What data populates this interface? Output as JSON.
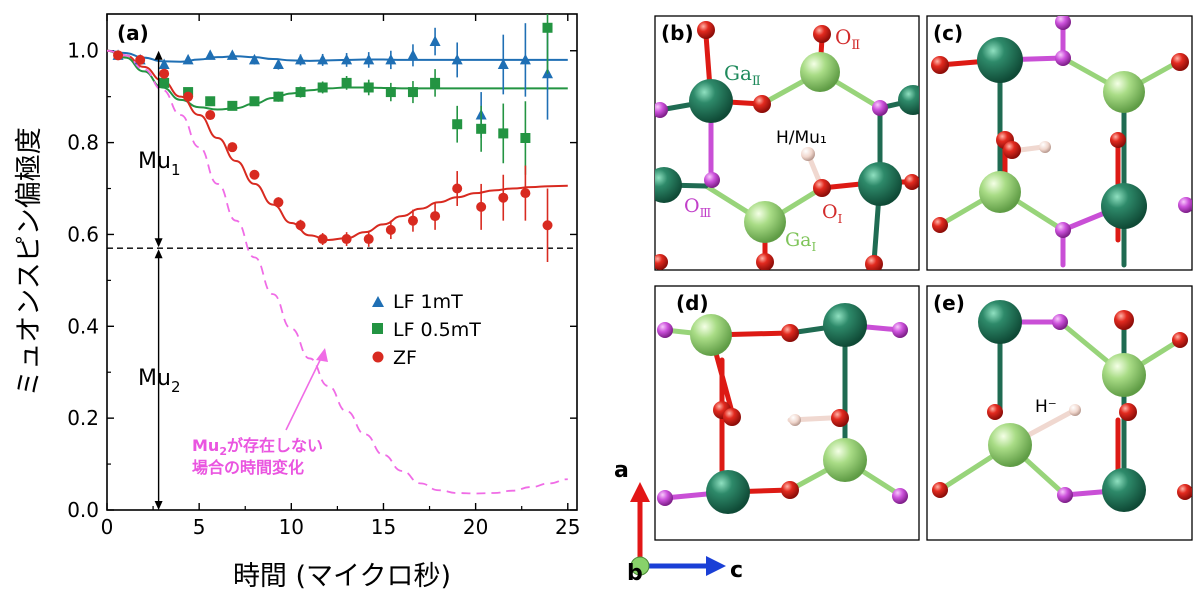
{
  "chart_data": {
    "type": "scatter",
    "panel_label": "(a)",
    "xlabel": "時間 (マイクロ秒)",
    "ylabel": "ミュオンスピン偏極度",
    "xlim": [
      0,
      25.5
    ],
    "ylim": [
      0,
      1.08
    ],
    "xticks": [
      "0",
      "5",
      "10",
      "15",
      "20",
      "25"
    ],
    "yticks": [
      "0.0",
      "0.2",
      "0.4",
      "0.6",
      "0.8",
      "1.0"
    ],
    "legend": {
      "position": "right-middle",
      "entries": [
        "LF 1mT",
        "LF 0.5mT",
        "ZF"
      ]
    },
    "annotations": {
      "mu1": "Mu",
      "mu1_sub": "1",
      "mu2": "Mu",
      "mu2_sub": "2",
      "dashed_note_line1_a": "Mu",
      "dashed_note_line1_sub": "2",
      "dashed_note_line1_b": "が存在しない",
      "dashed_note_line2": "場合の時間変化",
      "hline_y": 0.57
    },
    "series": [
      {
        "name": "LF 1mT",
        "color": "#1f6fb4",
        "marker": "triangle",
        "x": [
          0.6,
          1.8,
          3.1,
          4.4,
          5.6,
          6.8,
          8.0,
          9.3,
          10.5,
          11.7,
          13.0,
          14.2,
          15.4,
          16.6,
          17.8,
          19.0,
          20.3,
          21.5,
          22.7,
          23.9
        ],
        "y": [
          0.99,
          0.98,
          0.97,
          0.98,
          0.99,
          0.99,
          0.98,
          0.97,
          0.98,
          0.98,
          0.98,
          0.98,
          0.98,
          0.99,
          1.02,
          0.98,
          0.86,
          0.97,
          0.98,
          0.95
        ],
        "err": [
          0.005,
          0.006,
          0.007,
          0.008,
          0.008,
          0.009,
          0.01,
          0.011,
          0.012,
          0.013,
          0.015,
          0.017,
          0.02,
          0.024,
          0.03,
          0.038,
          0.05,
          0.065,
          0.08,
          0.1
        ]
      },
      {
        "name": "LF 0.5mT",
        "color": "#239442",
        "marker": "square",
        "x": [
          3.1,
          4.4,
          5.6,
          6.8,
          8.0,
          9.3,
          10.5,
          11.7,
          13.0,
          14.2,
          15.4,
          16.6,
          17.8,
          19.0,
          20.3,
          21.5,
          22.7,
          23.9
        ],
        "y": [
          0.93,
          0.91,
          0.89,
          0.88,
          0.89,
          0.9,
          0.91,
          0.92,
          0.93,
          0.92,
          0.91,
          0.91,
          0.93,
          0.84,
          0.83,
          0.82,
          0.81,
          1.05
        ],
        "err": [
          0.006,
          0.007,
          0.008,
          0.009,
          0.01,
          0.011,
          0.012,
          0.013,
          0.015,
          0.017,
          0.02,
          0.024,
          0.03,
          0.04,
          0.05,
          0.065,
          0.08,
          0.1
        ]
      },
      {
        "name": "ZF",
        "color": "#d82a20",
        "marker": "circle",
        "x": [
          0.6,
          1.8,
          3.1,
          4.4,
          5.6,
          6.8,
          8.0,
          9.3,
          10.5,
          11.7,
          13.0,
          14.2,
          15.4,
          16.6,
          17.8,
          19.0,
          20.3,
          21.5,
          22.7,
          23.9
        ],
        "y": [
          0.99,
          0.98,
          0.95,
          0.9,
          0.86,
          0.79,
          0.73,
          0.67,
          0.62,
          0.59,
          0.59,
          0.59,
          0.61,
          0.63,
          0.64,
          0.7,
          0.66,
          0.68,
          0.69,
          0.62
        ],
        "err": [
          0.005,
          0.006,
          0.007,
          0.008,
          0.008,
          0.009,
          0.01,
          0.011,
          0.012,
          0.013,
          0.015,
          0.017,
          0.02,
          0.024,
          0.03,
          0.038,
          0.05,
          0.05,
          0.06,
          0.08
        ]
      }
    ],
    "fits": [
      {
        "name": "LF 1mT fit",
        "color": "#1f6fb4",
        "x": [
          0,
          1,
          2,
          3,
          4,
          5,
          6,
          7,
          8,
          9,
          10,
          11,
          12,
          13,
          14,
          15,
          16,
          17,
          18,
          19,
          20,
          21,
          22,
          23,
          24,
          25
        ],
        "y": [
          1.0,
          0.995,
          0.985,
          0.977,
          0.976,
          0.981,
          0.986,
          0.988,
          0.986,
          0.982,
          0.979,
          0.978,
          0.979,
          0.98,
          0.981,
          0.981,
          0.98,
          0.98,
          0.98,
          0.98,
          0.98,
          0.98,
          0.98,
          0.98,
          0.98,
          0.98
        ]
      },
      {
        "name": "LF 0.5mT fit",
        "color": "#239442",
        "x": [
          0,
          1,
          2,
          3,
          4,
          5,
          6,
          7,
          8,
          9,
          10,
          11,
          12,
          13,
          14,
          15,
          16,
          17,
          18,
          19,
          20,
          21,
          22,
          23,
          24,
          25
        ],
        "y": [
          1.0,
          0.985,
          0.955,
          0.92,
          0.893,
          0.877,
          0.872,
          0.875,
          0.885,
          0.897,
          0.907,
          0.914,
          0.918,
          0.92,
          0.92,
          0.919,
          0.918,
          0.918,
          0.918,
          0.918,
          0.918,
          0.918,
          0.918,
          0.918,
          0.918,
          0.918
        ]
      },
      {
        "name": "ZF fit",
        "color": "#d82a20",
        "x": [
          0,
          1,
          2,
          3,
          4,
          5,
          6,
          7,
          8,
          9,
          10,
          11,
          12,
          13,
          14,
          15,
          16,
          17,
          18,
          19,
          20,
          21,
          22,
          23,
          24,
          25
        ],
        "y": [
          1.0,
          0.99,
          0.965,
          0.935,
          0.9,
          0.86,
          0.81,
          0.76,
          0.71,
          0.665,
          0.625,
          0.598,
          0.588,
          0.592,
          0.605,
          0.622,
          0.64,
          0.656,
          0.67,
          0.681,
          0.69,
          0.696,
          0.7,
          0.703,
          0.705,
          0.706
        ]
      },
      {
        "name": "no-Mu2 curve",
        "color": "#f06ce6",
        "dashed": true,
        "x": [
          0,
          1,
          2,
          3,
          4,
          5,
          6,
          7,
          8,
          9,
          10,
          11,
          12,
          13,
          14,
          15,
          16,
          17,
          18,
          19,
          20,
          21,
          22,
          23,
          24,
          25
        ],
        "y": [
          1.0,
          0.99,
          0.96,
          0.915,
          0.86,
          0.79,
          0.71,
          0.63,
          0.55,
          0.47,
          0.395,
          0.33,
          0.27,
          0.215,
          0.165,
          0.12,
          0.085,
          0.058,
          0.043,
          0.037,
          0.036,
          0.037,
          0.042,
          0.05,
          0.058,
          0.067
        ]
      }
    ]
  },
  "structures": {
    "panels": [
      {
        "label": "(b)"
      },
      {
        "label": "(c)"
      },
      {
        "label": "(d)"
      },
      {
        "label": "(e)"
      }
    ],
    "labels_b": {
      "ga2": "Ga",
      "ga2_sub": "Ⅱ",
      "o2": "O",
      "o2_sub": "Ⅱ",
      "hmu": "H/Mu₁",
      "o3": "O",
      "o3_sub": "Ⅲ",
      "o1": "O",
      "o1_sub": "I",
      "ga1": "Ga",
      "ga1_sub": "I"
    },
    "label_e": "H⁻",
    "axes": {
      "a": "a",
      "b": "b",
      "c": "c"
    },
    "colors": {
      "ga_dark": "#1f6b52",
      "ga_light": "#98d47a",
      "o_red": "#dd1a14",
      "o_magenta": "#c94fd6",
      "h": "#f0d8d0",
      "label_green": "#1f8a5c",
      "label_light_green": "#7fc45a",
      "label_red": "#d22b2b",
      "label_magenta": "#c13fc9"
    }
  }
}
